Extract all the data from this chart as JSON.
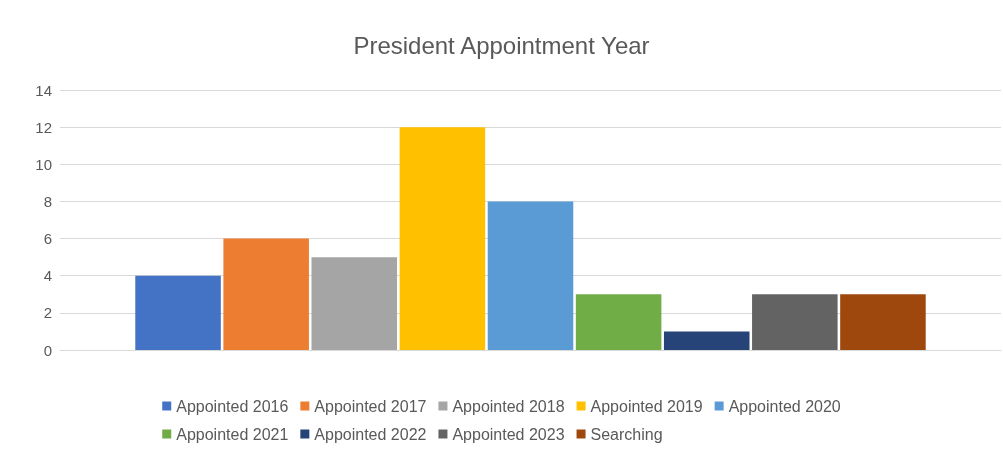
{
  "chart_data": {
    "type": "bar",
    "title": "President Appointment Year",
    "categories": [
      null
    ],
    "series": [
      {
        "name": "Appointed 2016",
        "color": "#4472c4",
        "values": [
          4
        ]
      },
      {
        "name": "Appointed 2017",
        "color": "#ed7d31",
        "values": [
          6
        ]
      },
      {
        "name": "Appointed 2018",
        "color": "#a5a5a5",
        "values": [
          5
        ]
      },
      {
        "name": "Appointed 2019",
        "color": "#ffc000",
        "values": [
          12
        ]
      },
      {
        "name": "Appointed 2020",
        "color": "#5b9bd5",
        "values": [
          8
        ]
      },
      {
        "name": "Appointed 2021",
        "color": "#70ad47",
        "values": [
          3
        ]
      },
      {
        "name": "Appointed 2022",
        "color": "#264478",
        "values": [
          1
        ]
      },
      {
        "name": "Appointed 2023",
        "color": "#636363",
        "values": [
          3
        ]
      },
      {
        "name": "Searching",
        "color": "#9e480e",
        "values": [
          3
        ]
      }
    ],
    "ylim": [
      0,
      14
    ],
    "yticks": [
      0,
      2,
      4,
      6,
      8,
      10,
      12,
      14
    ],
    "grid": "y",
    "legend": "bottom"
  }
}
